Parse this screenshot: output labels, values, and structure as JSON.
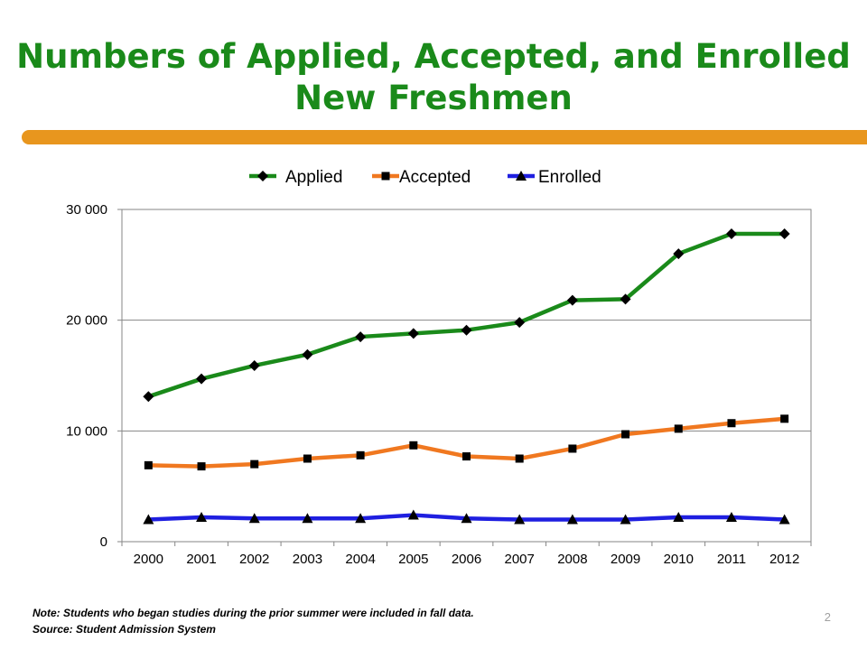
{
  "slide": {
    "title_line1": "Numbers of Applied, Accepted, and Enrolled",
    "title_line2": "New Freshmen",
    "note": "Note:  Students who began studies during the prior summer were included in fall data.",
    "source": "Source:  Student Admission System",
    "page_number": "2",
    "accent_color": "#e8961e",
    "title_color": "#1a8a1a"
  },
  "chart_data": {
    "type": "line",
    "title": "",
    "xlabel": "",
    "ylabel": "",
    "categories": [
      "2000",
      "2001",
      "2002",
      "2003",
      "2004",
      "2005",
      "2006",
      "2007",
      "2008",
      "2009",
      "2010",
      "2011",
      "2012"
    ],
    "ylim": [
      0,
      30000
    ],
    "yticks": [
      0,
      10000,
      20000,
      30000
    ],
    "ytick_labels": [
      "0",
      "10 000",
      "20 000",
      "30 000"
    ],
    "grid": true,
    "legend_position": "top",
    "series": [
      {
        "name": "Applied",
        "color": "#1a8a1a",
        "marker": "diamond",
        "values": [
          13100,
          14700,
          15900,
          16900,
          18500,
          18800,
          19100,
          19800,
          21800,
          21900,
          26000,
          27800,
          27800
        ]
      },
      {
        "name": "Accepted",
        "color": "#f07820",
        "marker": "square",
        "values": [
          6900,
          6800,
          7000,
          7500,
          7800,
          8700,
          7700,
          7500,
          8400,
          9700,
          10200,
          10700,
          11100
        ]
      },
      {
        "name": "Enrolled",
        "color": "#1f1fe0",
        "marker": "triangle",
        "values": [
          2000,
          2200,
          2100,
          2100,
          2100,
          2400,
          2100,
          2000,
          2000,
          2000,
          2200,
          2200,
          2000
        ]
      }
    ]
  }
}
